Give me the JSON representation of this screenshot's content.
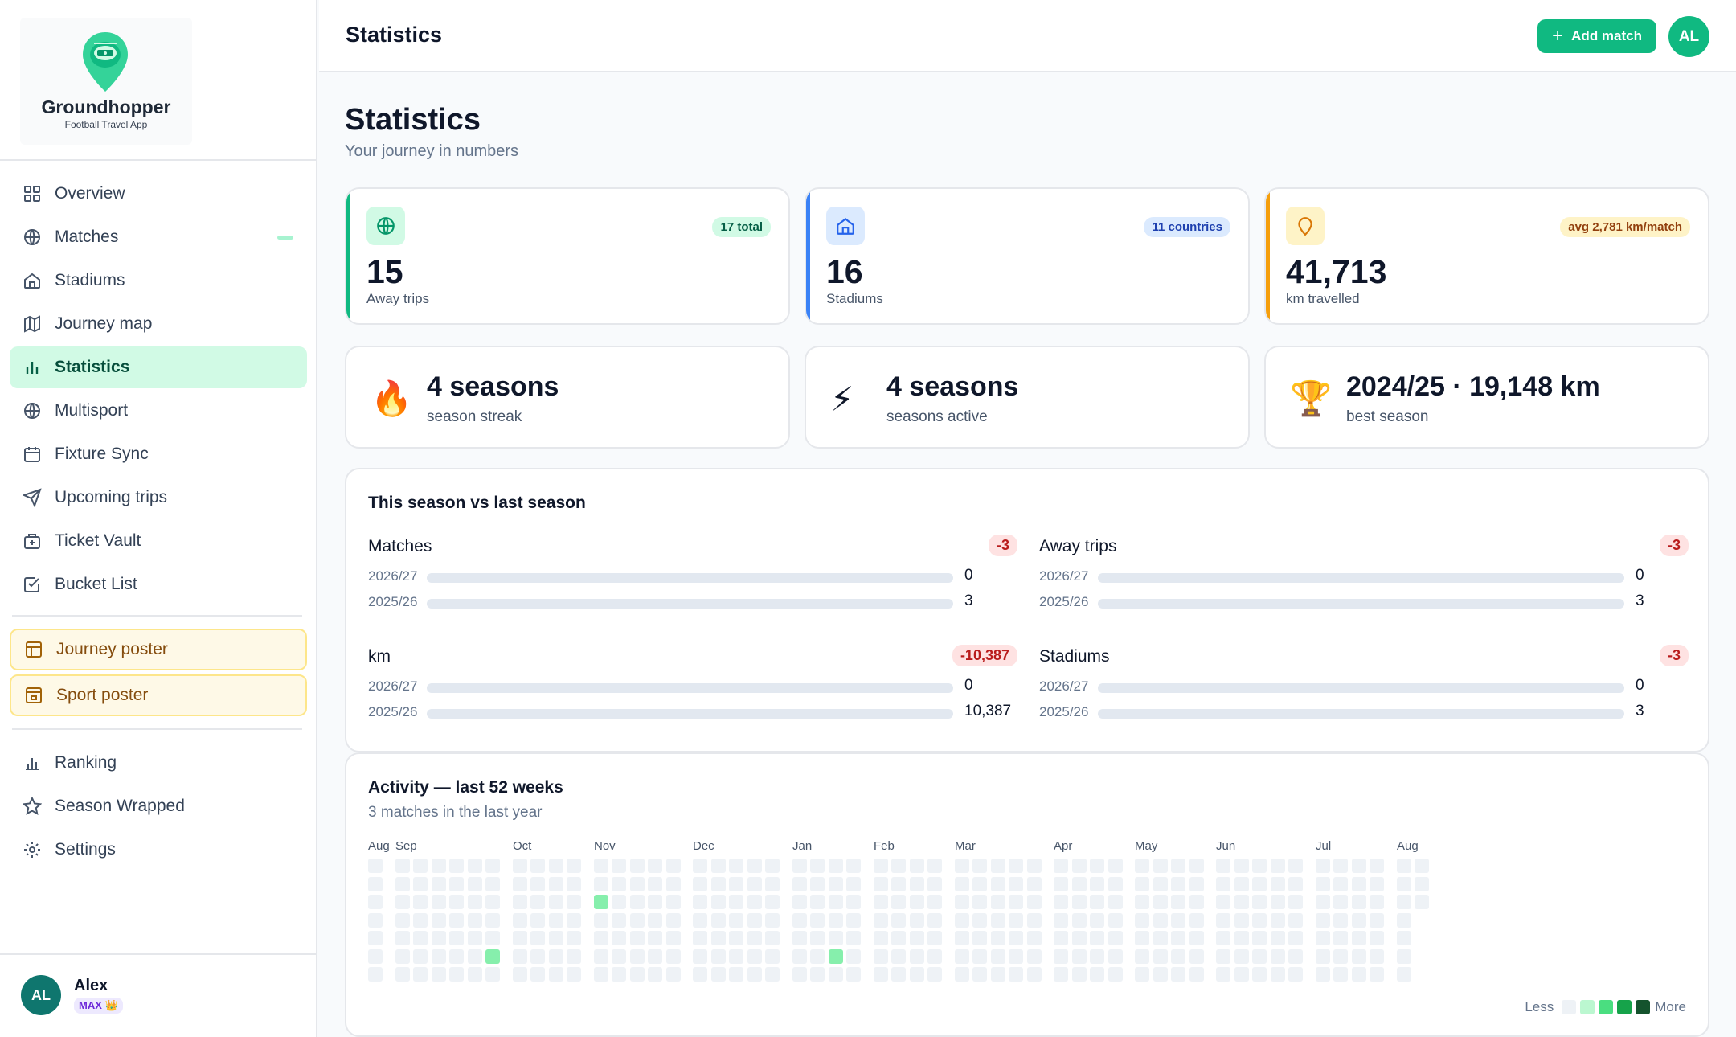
{
  "app": {
    "name": "Groundhopper",
    "tagline": "Football Travel App"
  },
  "nav": {
    "items": [
      {
        "label": "Overview",
        "icon": "grid-icon"
      },
      {
        "label": "Matches",
        "icon": "ball-icon"
      },
      {
        "label": "Stadiums",
        "icon": "home-icon"
      },
      {
        "label": "Journey map",
        "icon": "map-icon"
      },
      {
        "label": "Statistics",
        "icon": "bar-chart-icon",
        "active": true
      },
      {
        "label": "Multisport",
        "icon": "ball-icon"
      },
      {
        "label": "Fixture Sync",
        "icon": "calendar-icon"
      },
      {
        "label": "Upcoming trips",
        "icon": "send-icon"
      },
      {
        "label": "Ticket Vault",
        "icon": "ticket-icon"
      },
      {
        "label": "Bucket List",
        "icon": "checkbox-icon"
      }
    ],
    "posters": [
      {
        "label": "Journey poster",
        "icon": "layout-icon"
      },
      {
        "label": "Sport poster",
        "icon": "poster-icon"
      }
    ],
    "bottom": [
      {
        "label": "Ranking",
        "icon": "bar-chart-icon"
      },
      {
        "label": "Season Wrapped",
        "icon": "star-icon"
      },
      {
        "label": "Settings",
        "icon": "gear-icon"
      }
    ]
  },
  "user": {
    "initials": "AL",
    "name": "Alex",
    "plan": "MAX 👑"
  },
  "header": {
    "title": "Statistics",
    "add_label": "Add match",
    "avatar": "AL"
  },
  "page": {
    "title": "Statistics",
    "subtitle": "Your journey in numbers"
  },
  "kpis": [
    {
      "value": "15",
      "label": "Away trips",
      "chip": "17 total",
      "accent": "#10b981",
      "chip_bg": "#d1fae5",
      "chip_color": "#065f46",
      "icon": "ball-icon"
    },
    {
      "value": "16",
      "label": "Stadiums",
      "chip": "11 countries",
      "accent": "#3b82f6",
      "chip_bg": "#dbeafe",
      "chip_color": "#1e40af",
      "icon": "home-icon"
    },
    {
      "value": "41,713",
      "label": "km travelled",
      "chip": "avg 2,781 km/match",
      "accent": "#f59e0b",
      "chip_bg": "#fef3c7",
      "chip_color": "#92400e",
      "icon": "pin-icon"
    }
  ],
  "highlights": [
    {
      "emoji": "🔥",
      "value": "4 seasons",
      "label": "season streak"
    },
    {
      "emoji": "⚡",
      "value": "4 seasons",
      "label": "seasons active"
    },
    {
      "emoji": "🏆",
      "value": "2024/25 · 19,148 km",
      "label": "best season"
    }
  ],
  "comparison": {
    "title": "This season vs last season",
    "metrics": [
      {
        "name": "Matches",
        "delta": "-3",
        "rows": [
          {
            "season": "2026/27",
            "value": "0",
            "fill": 0
          },
          {
            "season": "2025/26",
            "value": "3",
            "fill": 0
          }
        ]
      },
      {
        "name": "Away trips",
        "delta": "-3",
        "rows": [
          {
            "season": "2026/27",
            "value": "0",
            "fill": 0
          },
          {
            "season": "2025/26",
            "value": "3",
            "fill": 0
          }
        ]
      },
      {
        "name": "km",
        "delta": "-10,387",
        "rows": [
          {
            "season": "2026/27",
            "value": "0",
            "fill": 0
          },
          {
            "season": "2025/26",
            "value": "10,387",
            "fill": 0
          }
        ]
      },
      {
        "name": "Stadiums",
        "delta": "-3",
        "rows": [
          {
            "season": "2026/27",
            "value": "0",
            "fill": 0
          },
          {
            "season": "2025/26",
            "value": "3",
            "fill": 0
          }
        ]
      }
    ]
  },
  "activity": {
    "title": "Activity — last 52 weeks",
    "subtitle": "3 matches in the last year",
    "months": [
      {
        "label": "Aug",
        "week": 0
      },
      {
        "label": "Sep",
        "week": 1
      },
      {
        "label": "Oct",
        "week": 7
      },
      {
        "label": "Nov",
        "week": 11
      },
      {
        "label": "Dec",
        "week": 16
      },
      {
        "label": "Jan",
        "week": 21
      },
      {
        "label": "Feb",
        "week": 25
      },
      {
        "label": "Mar",
        "week": 29
      },
      {
        "label": "Apr",
        "week": 34
      },
      {
        "label": "May",
        "week": 38
      },
      {
        "label": "Jun",
        "week": 42
      },
      {
        "label": "Jul",
        "week": 47
      },
      {
        "label": "Aug",
        "week": 51
      }
    ],
    "weeks": 53,
    "active_days": [
      {
        "week": 6,
        "day": 5
      },
      {
        "week": 11,
        "day": 2
      },
      {
        "week": 23,
        "day": 5
      }
    ],
    "legend": {
      "less": "Less",
      "more": "More",
      "colors": [
        "#eef2f6",
        "#bbf7d0",
        "#4ade80",
        "#16a34a",
        "#14532d"
      ]
    }
  }
}
